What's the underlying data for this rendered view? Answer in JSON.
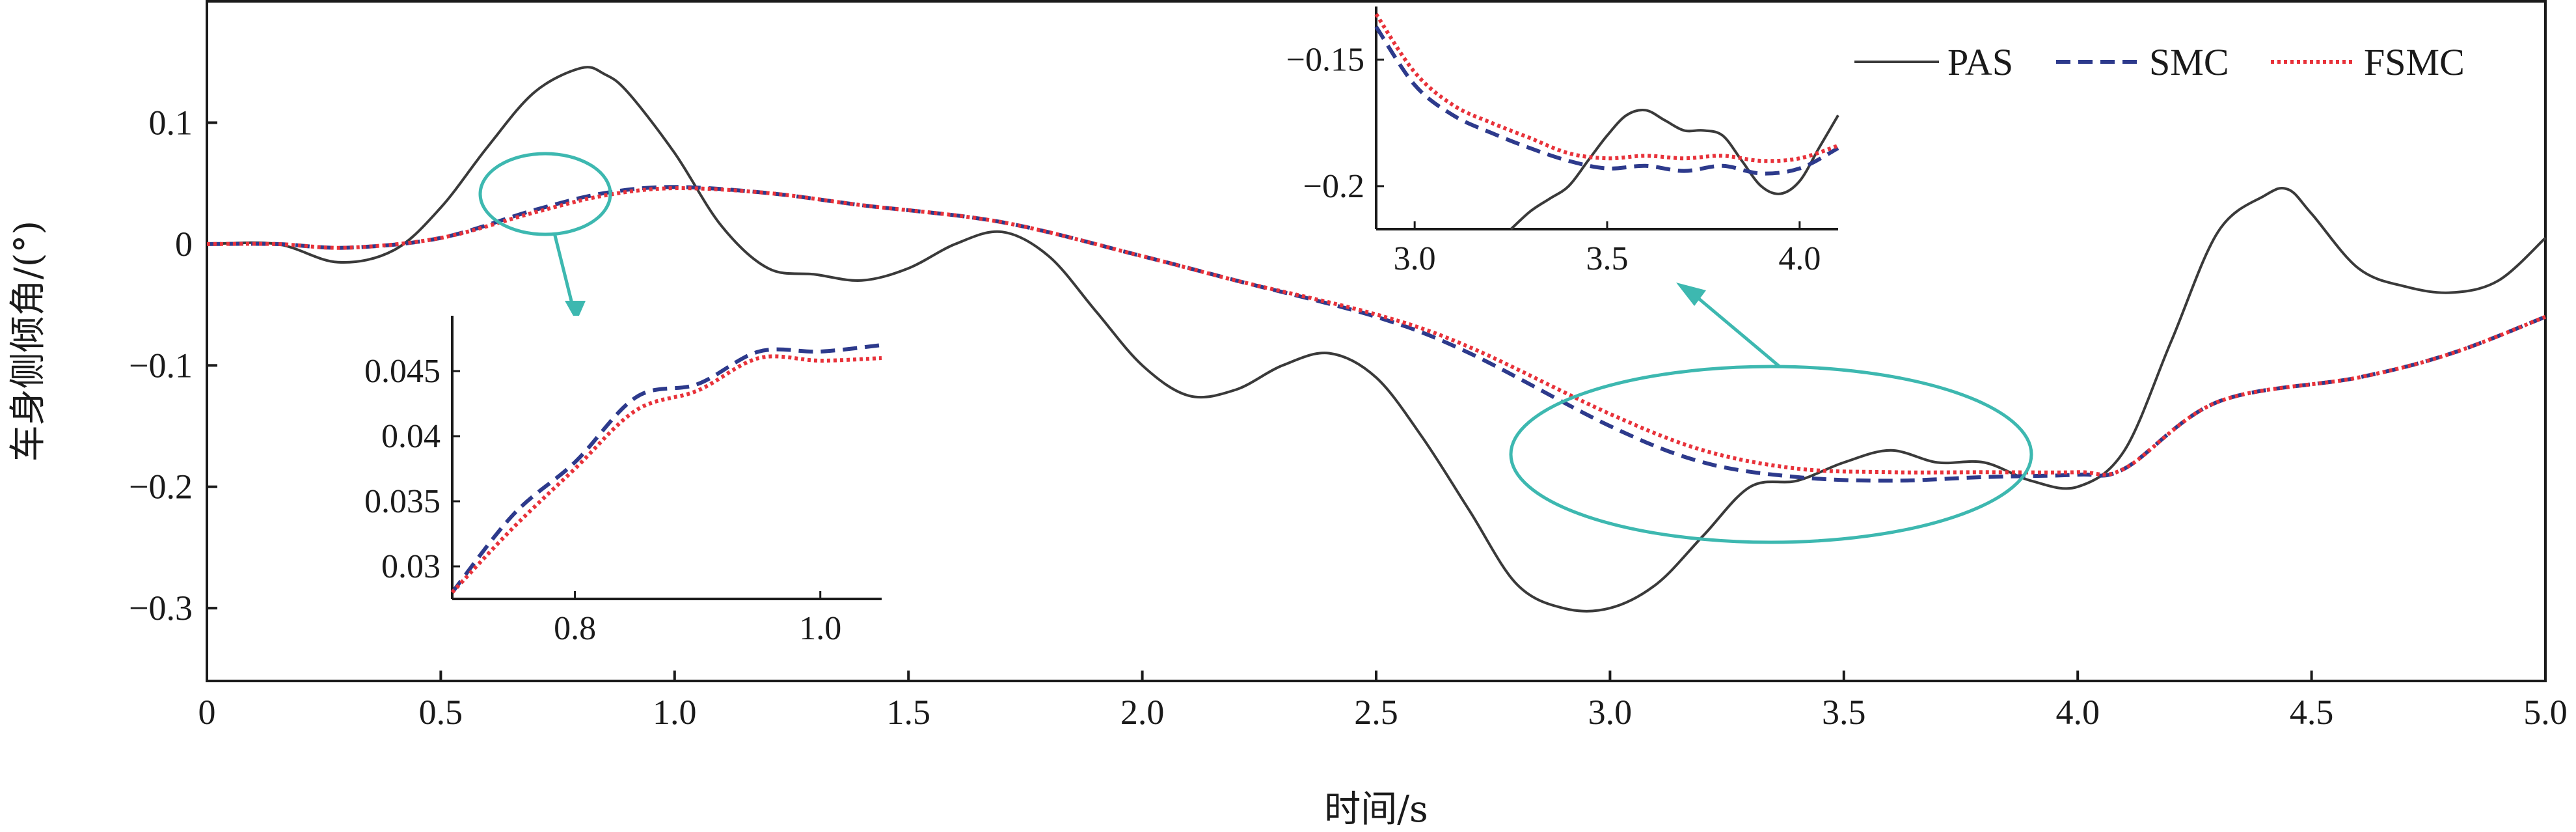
{
  "chart_data": {
    "type": "line",
    "xlabel": "时间/s",
    "ylabel": "车身侧倾角/(°)",
    "xlim": [
      0,
      5.0
    ],
    "ylim": [
      -0.36,
      0.2
    ],
    "x_ticks": [
      "0",
      "0.5",
      "1.0",
      "1.5",
      "2.0",
      "2.5",
      "3.0",
      "3.5",
      "4.0",
      "4.5",
      "5.0"
    ],
    "y_ticks": [
      "0.1",
      "0",
      "−0.1",
      "−0.2",
      "−0.3"
    ],
    "grid": false,
    "legend_position": "top-right",
    "series": [
      {
        "name": "PAS",
        "color": "#3a3a3a",
        "style": "solid",
        "x": [
          0,
          0.15,
          0.28,
          0.4,
          0.5,
          0.6,
          0.7,
          0.8,
          0.85,
          0.9,
          1.0,
          1.1,
          1.2,
          1.3,
          1.4,
          1.5,
          1.6,
          1.7,
          1.8,
          1.9,
          2.0,
          2.1,
          2.2,
          2.3,
          2.4,
          2.5,
          2.6,
          2.7,
          2.8,
          2.9,
          3.0,
          3.1,
          3.2,
          3.3,
          3.4,
          3.5,
          3.6,
          3.7,
          3.8,
          3.9,
          4.0,
          4.1,
          4.2,
          4.3,
          4.4,
          4.45,
          4.5,
          4.6,
          4.7,
          4.8,
          4.9,
          5.0
        ],
        "values": [
          0,
          0.0,
          -0.015,
          -0.005,
          0.03,
          0.08,
          0.125,
          0.145,
          0.14,
          0.125,
          0.075,
          0.015,
          -0.02,
          -0.025,
          -0.03,
          -0.02,
          0.0,
          0.01,
          -0.01,
          -0.055,
          -0.1,
          -0.125,
          -0.12,
          -0.1,
          -0.09,
          -0.11,
          -0.16,
          -0.22,
          -0.28,
          -0.3,
          -0.3,
          -0.28,
          -0.24,
          -0.2,
          -0.195,
          -0.18,
          -0.17,
          -0.18,
          -0.18,
          -0.195,
          -0.2,
          -0.17,
          -0.08,
          0.01,
          0.04,
          0.045,
          0.025,
          -0.02,
          -0.035,
          -0.04,
          -0.03,
          0.005
        ]
      },
      {
        "name": "SMC",
        "color": "#2d3a8c",
        "style": "dashed",
        "x": [
          0,
          0.15,
          0.3,
          0.5,
          0.7,
          0.85,
          1.0,
          1.2,
          1.4,
          1.7,
          2.0,
          2.2,
          2.5,
          2.7,
          3.0,
          3.2,
          3.4,
          3.6,
          3.8,
          4.0,
          4.1,
          4.3,
          4.6,
          4.8,
          5.0
        ],
        "values": [
          0,
          0.0,
          -0.003,
          0.005,
          0.028,
          0.042,
          0.047,
          0.042,
          0.032,
          0.018,
          -0.01,
          -0.03,
          -0.06,
          -0.09,
          -0.15,
          -0.18,
          -0.192,
          -0.195,
          -0.192,
          -0.19,
          -0.185,
          -0.13,
          -0.11,
          -0.09,
          -0.06
        ]
      },
      {
        "name": "FSMC",
        "color": "#e8323a",
        "style": "dotted",
        "x": [
          0,
          0.15,
          0.3,
          0.5,
          0.7,
          0.85,
          1.0,
          1.2,
          1.4,
          1.7,
          2.0,
          2.2,
          2.5,
          2.7,
          3.0,
          3.2,
          3.4,
          3.6,
          3.8,
          4.0,
          4.1,
          4.3,
          4.6,
          4.8,
          5.0
        ],
        "values": [
          0,
          0.0,
          -0.003,
          0.005,
          0.026,
          0.04,
          0.046,
          0.042,
          0.032,
          0.018,
          -0.01,
          -0.03,
          -0.058,
          -0.085,
          -0.14,
          -0.17,
          -0.185,
          -0.188,
          -0.188,
          -0.188,
          -0.185,
          -0.13,
          -0.11,
          -0.09,
          -0.06
        ]
      }
    ],
    "insets": [
      {
        "id": "inset-left",
        "xlim": [
          0.7,
          1.05
        ],
        "ylim": [
          0.0275,
          0.049
        ],
        "x_ticks": [
          "0.8",
          "1.0"
        ],
        "y_ticks": [
          "0.045",
          "0.04",
          "0.035",
          "0.03"
        ],
        "series": [
          {
            "name": "SMC",
            "x": [
              0.7,
              0.75,
              0.8,
              0.85,
              0.9,
              0.95,
              1.0,
              1.05
            ],
            "values": [
              0.028,
              0.034,
              0.038,
              0.043,
              0.044,
              0.0465,
              0.0465,
              0.047
            ]
          },
          {
            "name": "FSMC",
            "x": [
              0.7,
              0.75,
              0.8,
              0.85,
              0.9,
              0.95,
              1.0,
              1.05
            ],
            "values": [
              0.028,
              0.033,
              0.0375,
              0.042,
              0.0435,
              0.046,
              0.0458,
              0.046
            ]
          }
        ]
      },
      {
        "id": "inset-right",
        "xlim": [
          2.9,
          4.1
        ],
        "ylim": [
          -0.217,
          -0.129
        ],
        "x_ticks": [
          "3.0",
          "3.5",
          "4.0"
        ],
        "y_ticks": [
          "−0.15",
          "−0.2"
        ],
        "series": [
          {
            "name": "PAS",
            "x": [
              3.25,
              3.3,
              3.35,
              3.4,
              3.45,
              3.5,
              3.55,
              3.6,
              3.65,
              3.7,
              3.75,
              3.8,
              3.85,
              3.9,
              3.95,
              4.0,
              4.05,
              4.1
            ],
            "values": [
              -0.217,
              -0.21,
              -0.205,
              -0.2,
              -0.19,
              -0.18,
              -0.172,
              -0.17,
              -0.174,
              -0.178,
              -0.178,
              -0.18,
              -0.19,
              -0.2,
              -0.203,
              -0.198,
              -0.185,
              -0.172
            ]
          },
          {
            "name": "SMC",
            "x": [
              2.9,
              3.0,
              3.1,
              3.2,
              3.3,
              3.4,
              3.5,
              3.6,
              3.7,
              3.8,
              3.9,
              4.0,
              4.1
            ],
            "values": [
              -0.137,
              -0.16,
              -0.172,
              -0.179,
              -0.185,
              -0.19,
              -0.193,
              -0.192,
              -0.194,
              -0.192,
              -0.195,
              -0.193,
              -0.185
            ]
          },
          {
            "name": "FSMC",
            "x": [
              2.9,
              3.0,
              3.1,
              3.2,
              3.3,
              3.4,
              3.5,
              3.6,
              3.7,
              3.8,
              3.9,
              4.0,
              4.1
            ],
            "values": [
              -0.132,
              -0.155,
              -0.168,
              -0.175,
              -0.181,
              -0.187,
              -0.189,
              -0.188,
              -0.189,
              -0.188,
              -0.19,
              -0.189,
              -0.184
            ]
          }
        ]
      }
    ]
  }
}
